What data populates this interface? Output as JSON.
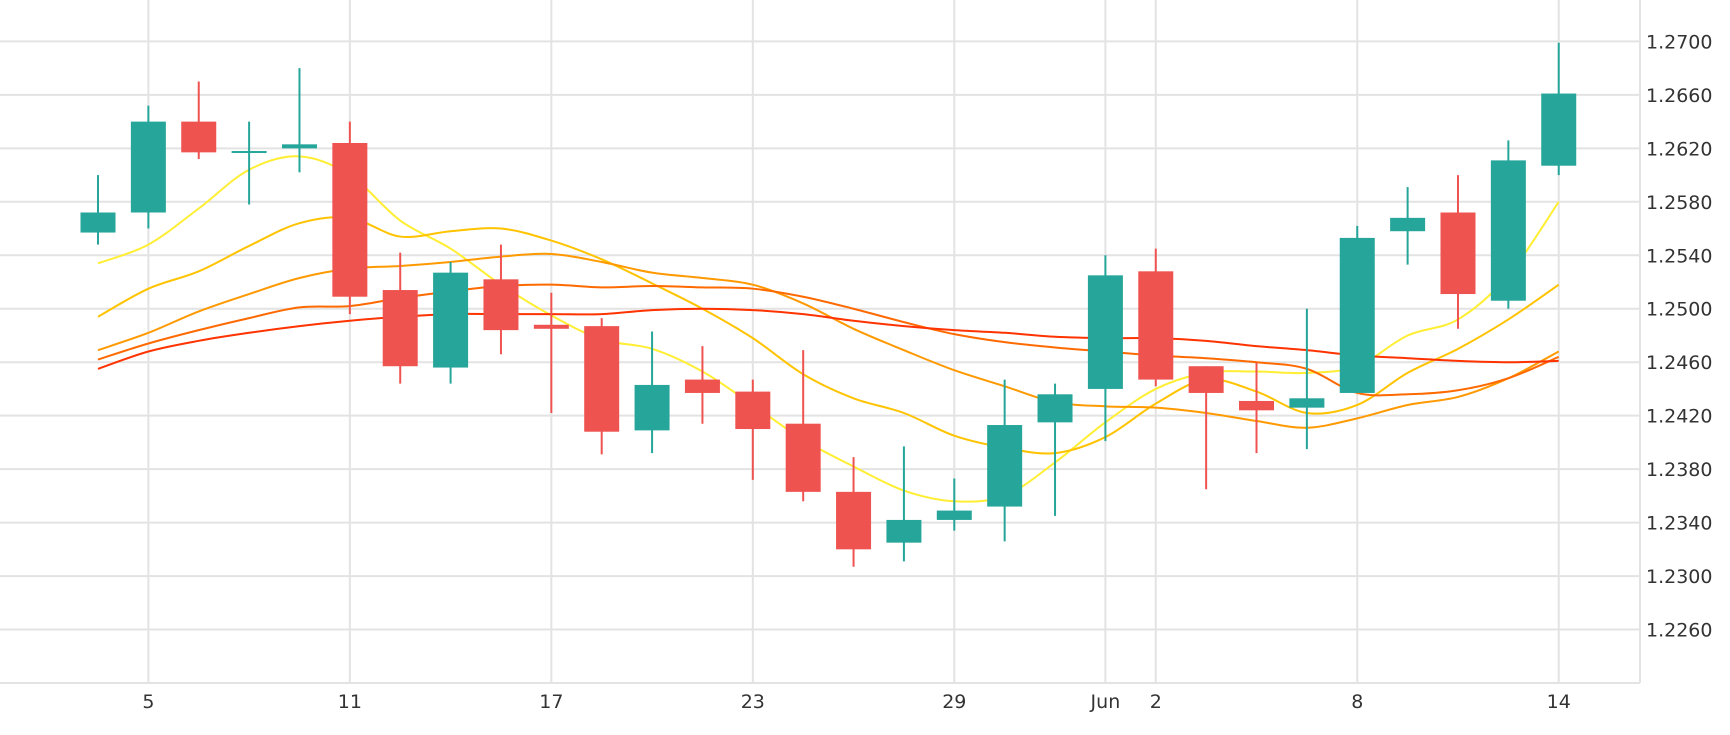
{
  "chart_data": {
    "type": "candlestick",
    "x_tick_labels": [
      {
        "label": "5",
        "index": 1
      },
      {
        "label": "11",
        "index": 5
      },
      {
        "label": "17",
        "index": 9
      },
      {
        "label": "23",
        "index": 13
      },
      {
        "label": "29",
        "index": 17
      },
      {
        "label": "Jun",
        "index": 20
      },
      {
        "label": "2",
        "index": 21
      },
      {
        "label": "8",
        "index": 25
      },
      {
        "label": "14",
        "index": 29
      }
    ],
    "y_ticks": [
      "1.2700",
      "1.2660",
      "1.2620",
      "1.2580",
      "1.2540",
      "1.2500",
      "1.2460",
      "1.2420",
      "1.2380",
      "1.2340",
      "1.2300",
      "1.2260"
    ],
    "ylim": [
      1.222,
      1.2725
    ],
    "colors": {
      "up": "#26a69a",
      "down": "#ef5350",
      "grid": "#e3e3e3"
    },
    "candles": [
      {
        "o": 1.2557,
        "h": 1.26,
        "l": 1.2548,
        "c": 1.2572
      },
      {
        "o": 1.2572,
        "h": 1.2652,
        "l": 1.256,
        "c": 1.264
      },
      {
        "o": 1.264,
        "h": 1.267,
        "l": 1.2612,
        "c": 1.2617
      },
      {
        "o": 1.2617,
        "h": 1.264,
        "l": 1.2578,
        "c": 1.2618
      },
      {
        "o": 1.262,
        "h": 1.268,
        "l": 1.2602,
        "c": 1.2623
      },
      {
        "o": 1.2624,
        "h": 1.264,
        "l": 1.2496,
        "c": 1.2509
      },
      {
        "o": 1.2514,
        "h": 1.2542,
        "l": 1.2444,
        "c": 1.2457
      },
      {
        "o": 1.2456,
        "h": 1.2535,
        "l": 1.2444,
        "c": 1.2527
      },
      {
        "o": 1.2522,
        "h": 1.2548,
        "l": 1.2466,
        "c": 1.2484
      },
      {
        "o": 1.2488,
        "h": 1.2512,
        "l": 1.2422,
        "c": 1.2485
      },
      {
        "o": 1.2487,
        "h": 1.2493,
        "l": 1.2391,
        "c": 1.2408
      },
      {
        "o": 1.2409,
        "h": 1.2483,
        "l": 1.2392,
        "c": 1.2443
      },
      {
        "o": 1.2447,
        "h": 1.2472,
        "l": 1.2414,
        "c": 1.2437
      },
      {
        "o": 1.2438,
        "h": 1.2447,
        "l": 1.2372,
        "c": 1.241
      },
      {
        "o": 1.2414,
        "h": 1.2469,
        "l": 1.2356,
        "c": 1.2363
      },
      {
        "o": 1.2363,
        "h": 1.2389,
        "l": 1.2307,
        "c": 1.232
      },
      {
        "o": 1.2325,
        "h": 1.2397,
        "l": 1.2311,
        "c": 1.2342
      },
      {
        "o": 1.2342,
        "h": 1.2373,
        "l": 1.2334,
        "c": 1.2349
      },
      {
        "o": 1.2352,
        "h": 1.2447,
        "l": 1.2326,
        "c": 1.2413
      },
      {
        "o": 1.2415,
        "h": 1.2444,
        "l": 1.2345,
        "c": 1.2436
      },
      {
        "o": 1.244,
        "h": 1.254,
        "l": 1.2401,
        "c": 1.2525
      },
      {
        "o": 1.2528,
        "h": 1.2545,
        "l": 1.2442,
        "c": 1.2447
      },
      {
        "o": 1.2457,
        "h": 1.2457,
        "l": 1.2365,
        "c": 1.2437
      },
      {
        "o": 1.2431,
        "h": 1.246,
        "l": 1.2392,
        "c": 1.2424
      },
      {
        "o": 1.2426,
        "h": 1.25,
        "l": 1.2395,
        "c": 1.2433
      },
      {
        "o": 1.2437,
        "h": 1.2562,
        "l": 1.2437,
        "c": 1.2553
      },
      {
        "o": 1.2558,
        "h": 1.2591,
        "l": 1.2533,
        "c": 1.2568
      },
      {
        "o": 1.2572,
        "h": 1.26,
        "l": 1.2485,
        "c": 1.2511
      },
      {
        "o": 1.2506,
        "h": 1.2626,
        "l": 1.25,
        "c": 1.2611
      },
      {
        "o": 1.2607,
        "h": 1.2699,
        "l": 1.26,
        "c": 1.2661
      }
    ],
    "series": [
      {
        "color": "#ffee33",
        "values": [
          1.2534,
          1.2548,
          1.2575,
          1.2604,
          1.2614,
          1.26,
          1.2566,
          1.2545,
          1.2518,
          1.2495,
          1.2477,
          1.247,
          1.2453,
          1.2428,
          1.2402,
          1.2382,
          1.2364,
          1.2356,
          1.236,
          1.2385,
          1.2415,
          1.244,
          1.2452,
          1.2453,
          1.2452,
          1.2457,
          1.248,
          1.2492,
          1.2525,
          1.258
        ]
      },
      {
        "color": "#ffc300",
        "values": [
          1.2494,
          1.2515,
          1.2528,
          1.2547,
          1.2564,
          1.2568,
          1.2554,
          1.2558,
          1.256,
          1.2551,
          1.2537,
          1.2519,
          1.25,
          1.2478,
          1.2451,
          1.2433,
          1.2422,
          1.2405,
          1.2396,
          1.2392,
          1.2404,
          1.2429,
          1.2447,
          1.2438,
          1.2422,
          1.2428,
          1.2452,
          1.247,
          1.2492,
          1.2518
        ]
      },
      {
        "color": "#ff9900",
        "values": [
          1.2469,
          1.2482,
          1.2498,
          1.2511,
          1.2523,
          1.253,
          1.2532,
          1.2535,
          1.2539,
          1.2541,
          1.2535,
          1.2527,
          1.2523,
          1.2518,
          1.2504,
          1.2485,
          1.2469,
          1.2454,
          1.2442,
          1.243,
          1.2427,
          1.2426,
          1.2422,
          1.2416,
          1.2411,
          1.2418,
          1.2428,
          1.2434,
          1.2448,
          1.2468
        ]
      },
      {
        "color": "#ff6a00",
        "values": [
          1.2462,
          1.2474,
          1.2484,
          1.2493,
          1.2501,
          1.2502,
          1.2508,
          1.2513,
          1.2517,
          1.2518,
          1.2516,
          1.2517,
          1.2516,
          1.2515,
          1.2509,
          1.25,
          1.249,
          1.2481,
          1.2475,
          1.2471,
          1.2468,
          1.2465,
          1.2463,
          1.246,
          1.2455,
          1.2437,
          1.2436,
          1.2439,
          1.2448,
          1.2464
        ]
      },
      {
        "color": "#ff3300",
        "values": [
          1.2455,
          1.2468,
          1.2476,
          1.2482,
          1.2487,
          1.2491,
          1.2494,
          1.2496,
          1.2496,
          1.2496,
          1.2496,
          1.2499,
          1.25,
          1.2499,
          1.2496,
          1.2491,
          1.2487,
          1.2484,
          1.2482,
          1.2479,
          1.2478,
          1.2478,
          1.2476,
          1.2472,
          1.2469,
          1.2465,
          1.2463,
          1.2461,
          1.246,
          1.2461
        ]
      }
    ]
  }
}
